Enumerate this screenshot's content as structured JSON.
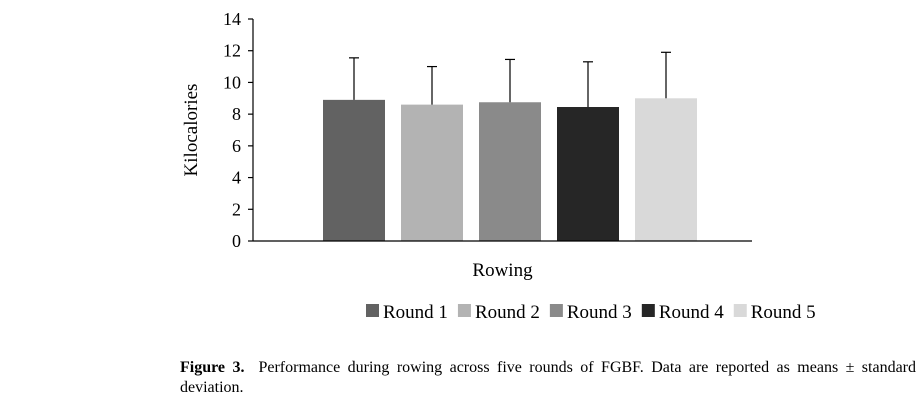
{
  "chart_data": {
    "type": "bar",
    "categories": [
      "Round 1",
      "Round 2",
      "Round 3",
      "Round 4",
      "Round 5"
    ],
    "values": [
      8.9,
      8.6,
      8.75,
      8.45,
      9.0
    ],
    "errors": [
      2.65,
      2.4,
      2.7,
      2.85,
      2.9
    ],
    "colors": [
      "#626262",
      "#b3b3b3",
      "#8a8a8a",
      "#262626",
      "#d9d9d9"
    ],
    "xlabel": "Rowing",
    "ylabel": "Kilocalories",
    "ylim": [
      0,
      14
    ],
    "yticks": [
      0,
      2,
      4,
      6,
      8,
      10,
      12,
      14
    ],
    "grid": false,
    "legend_position": "bottom"
  },
  "caption": {
    "label": "Figure 3.",
    "text": "Performance during rowing across five rounds of FGBF. Data are reported as means ± standard deviation."
  }
}
